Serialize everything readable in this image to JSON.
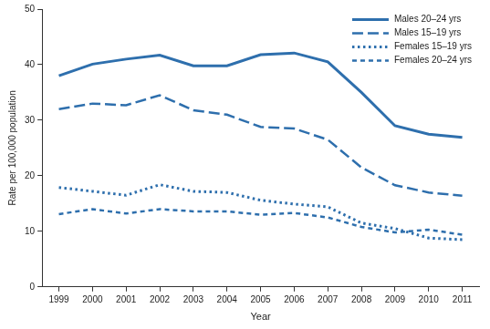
{
  "chart_data": {
    "type": "line",
    "x_label": "Year",
    "y_label": "Rate per 100,000 population",
    "categories": [
      "1999",
      "2000",
      "2001",
      "2002",
      "2003",
      "2004",
      "2005",
      "2006",
      "2007",
      "2008",
      "2009",
      "2010",
      "2011"
    ],
    "series": [
      {
        "name": "Males 20–24 yrs",
        "color": "#2e6fad",
        "line_style": "solid",
        "values": [
          38.0,
          40.1,
          41.0,
          41.7,
          39.8,
          39.8,
          41.8,
          42.1,
          40.5,
          35.0,
          29.0,
          27.5,
          26.9
        ]
      },
      {
        "name": "Males 15–19 yrs",
        "color": "#2e6fad",
        "line_style": "dashed",
        "values": [
          32.0,
          33.0,
          32.7,
          34.5,
          31.8,
          31.0,
          28.8,
          28.5,
          26.5,
          21.5,
          18.3,
          17.0,
          16.4
        ]
      },
      {
        "name": "Females 15–19 yrs",
        "color": "#2e6fad",
        "line_style": "dotted",
        "values": [
          17.9,
          17.2,
          16.5,
          18.4,
          17.2,
          17.0,
          15.6,
          14.9,
          14.4,
          11.5,
          10.5,
          8.8,
          8.5
        ]
      },
      {
        "name": "Females 20–24 yrs",
        "color": "#2e6fad",
        "line_style": "short_dashed",
        "values": [
          13.1,
          14.0,
          13.2,
          14.0,
          13.6,
          13.6,
          13.0,
          13.3,
          12.5,
          10.8,
          9.8,
          10.3,
          9.4
        ]
      }
    ],
    "ylim": [
      0,
      50
    ],
    "yticks": [
      0,
      10,
      20,
      30,
      40,
      50
    ],
    "grid": false,
    "legend": "upper right"
  }
}
